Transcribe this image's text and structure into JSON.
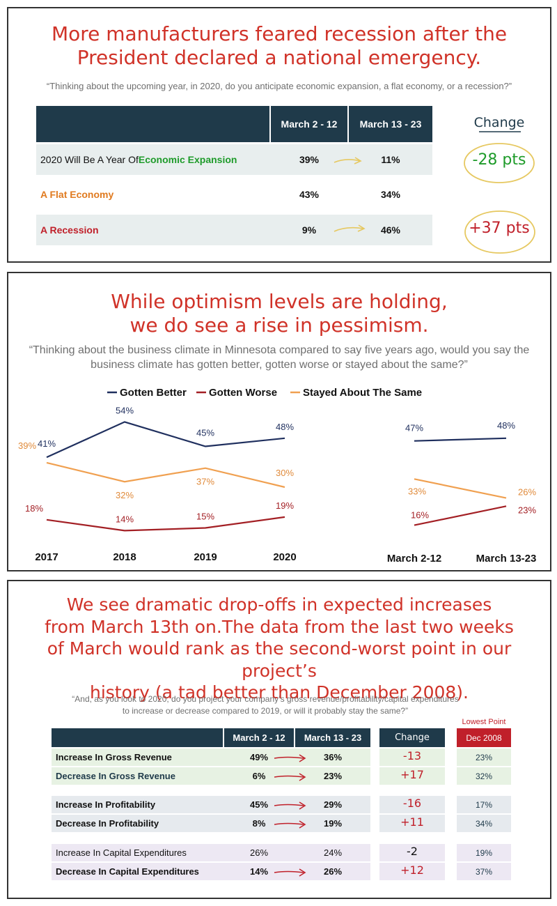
{
  "panel1": {
    "title_line1": "More manufacturers feared recession after the",
    "title_line2": "President declared a national emergency.",
    "question": "“Thinking about the upcoming year, in 2020, do you anticipate economic expansion, a flat economy, or a recession?”",
    "col1": "March 2 - 12",
    "col2": "March 13 - 23",
    "change_header": "Change",
    "row1_label_prefix": "2020 Will Be A Year Of ",
    "row1_label_highlight": "Economic Expansion",
    "row1_v1": "39%",
    "row1_v2": "11%",
    "row1_change": "-28 pts",
    "row2_label": "A Flat Economy",
    "row2_v1": "43%",
    "row2_v2": "34%",
    "row3_label": "A Recession",
    "row3_v1": "9%",
    "row3_v2": "46%",
    "row3_change": "+37 pts",
    "colors": {
      "expansion": "#1e9b2a",
      "flat": "#e07a1f",
      "recession": "#c0202a"
    }
  },
  "panel2": {
    "title_line1": "While optimism levels are holding,",
    "title_line2": "we do see a rise in pessimism.",
    "question_line1": "“Thinking about the business climate in Minnesota compared to say five years ago, would you say the",
    "question_line2": "business climate has gotten better, gotten worse or stayed about the same?”"
  },
  "chart_data": {
    "type": "line",
    "legend": [
      "Gotten Better",
      "Gotten Worse",
      "Stayed About The Same"
    ],
    "legend_placement": "top",
    "colors": {
      "Gotten Better": "#1f2f5e",
      "Gotten Worse": "#a31f24",
      "Stayed About The Same": "#f0a050"
    },
    "yearly": {
      "x": [
        "2017",
        "2018",
        "2019",
        "2020"
      ],
      "series": [
        {
          "name": "Gotten Better",
          "values": [
            41,
            54,
            45,
            48
          ],
          "labels": [
            "41%",
            "54%",
            "45%",
            "48%"
          ]
        },
        {
          "name": "Gotten Worse",
          "values": [
            18,
            14,
            15,
            19
          ],
          "labels": [
            "18%",
            "14%",
            "15%",
            "19%"
          ]
        },
        {
          "name": "Stayed About The Same",
          "values": [
            39,
            32,
            37,
            30
          ],
          "labels": [
            "39%",
            "32%",
            "37%",
            "30%"
          ]
        }
      ]
    },
    "march": {
      "x": [
        "March 2-12",
        "March 13-23"
      ],
      "series": [
        {
          "name": "Gotten Better",
          "values": [
            47,
            48
          ],
          "labels": [
            "47%",
            "48%"
          ]
        },
        {
          "name": "Gotten Worse",
          "values": [
            16,
            23
          ],
          "labels": [
            "16%",
            "23%"
          ]
        },
        {
          "name": "Stayed About The Same",
          "values": [
            33,
            26
          ],
          "labels": [
            "33%",
            "26%"
          ]
        }
      ]
    },
    "ylim": [
      10,
      60
    ]
  },
  "panel3": {
    "title_lines": [
      "We see dramatic drop-offs in expected increases",
      "from March 13th on.The data from the last two weeks",
      "of March would rank as the second-worst point in our project’s",
      "history (a tad better than December 2008)."
    ],
    "question_line1": "“And, as you look to 2020, do you project your company’s gross revenue/profitability/capital expenditures",
    "question_line2": "to increase or decrease compared to 2019, or will it probably stay the same?”",
    "col1": "March 2 - 12",
    "col2": "March 13 - 23",
    "change_header": "Change",
    "lowest_label": "Lowest Point",
    "dec_header": "Dec 2008",
    "rows": [
      {
        "label": "Increase In Gross Revenue",
        "v1": "49%",
        "v2": "36%",
        "change": "-13",
        "dec": "23%"
      },
      {
        "label": "Decrease In Gross Revenue",
        "v1": "6%",
        "v2": "23%",
        "change": "+17",
        "dec": "32%"
      },
      {
        "label": "Increase In Profitability",
        "v1": "45%",
        "v2": "29%",
        "change": "-16",
        "dec": "17%"
      },
      {
        "label": "Decrease In Profitability",
        "v1": "8%",
        "v2": "19%",
        "change": "+11",
        "dec": "34%"
      },
      {
        "label": "Increase In Capital Expenditures",
        "v1": "26%",
        "v2": "24%",
        "change": "-2",
        "dec": "19%"
      },
      {
        "label": "Decrease In Capital Expenditures",
        "v1": "14%",
        "v2": "26%",
        "change": "+12",
        "dec": "37%"
      }
    ]
  }
}
